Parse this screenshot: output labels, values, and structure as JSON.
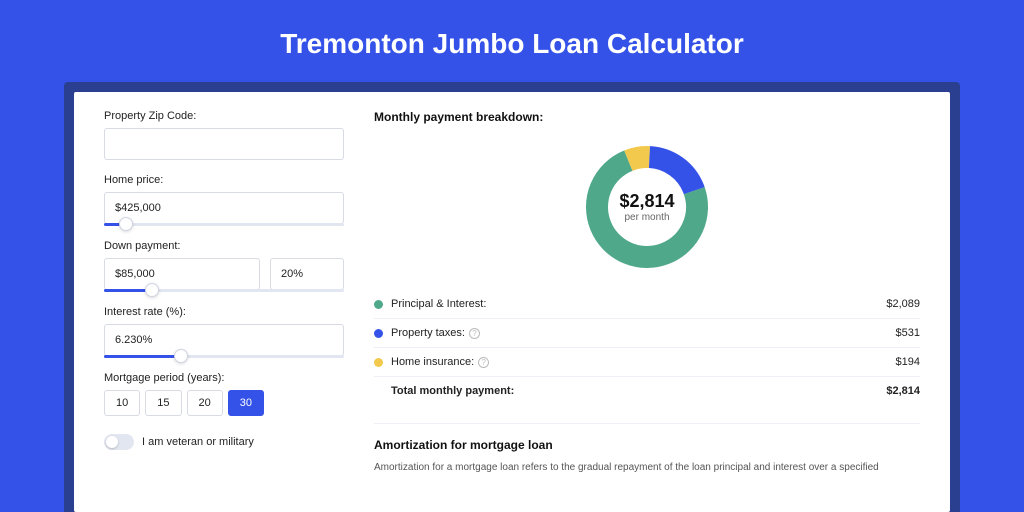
{
  "page": {
    "title": "Tremonton Jumbo Loan Calculator",
    "background_color": "#3452e8",
    "frame_shadow_color": "#2a3f8f",
    "card_background": "#ffffff"
  },
  "form": {
    "zip": {
      "label": "Property Zip Code:",
      "value": ""
    },
    "home_price": {
      "label": "Home price:",
      "value": "$425,000",
      "slider_pct": 9
    },
    "down_payment": {
      "label": "Down payment:",
      "value": "$85,000",
      "pct": "20%",
      "slider_pct": 20
    },
    "interest_rate": {
      "label": "Interest rate (%):",
      "value": "6.230%",
      "slider_pct": 32
    },
    "mortgage_period": {
      "label": "Mortgage period (years):",
      "options": [
        "10",
        "15",
        "20",
        "30"
      ],
      "selected": "30"
    },
    "veteran": {
      "label": "I am veteran or military",
      "checked": false
    }
  },
  "breakdown": {
    "title": "Monthly payment breakdown:",
    "center_amount": "$2,814",
    "center_sub": "per month",
    "donut": {
      "segments": [
        {
          "label": "Principal & Interest:",
          "value": "$2,089",
          "color": "#4ea889",
          "pct": 74.2,
          "has_info": false
        },
        {
          "label": "Property taxes:",
          "value": "$531",
          "color": "#3452e8",
          "pct": 18.9,
          "has_info": true
        },
        {
          "label": "Home insurance:",
          "value": "$194",
          "color": "#f2c94c",
          "pct": 6.9,
          "has_info": true
        }
      ],
      "stroke_width": 22,
      "radius": 50,
      "svg_size": 130
    },
    "total": {
      "label": "Total monthly payment:",
      "value": "$2,814"
    }
  },
  "amortization": {
    "title": "Amortization for mortgage loan",
    "text": "Amortization for a mortgage loan refers to the gradual repayment of the loan principal and interest over a specified"
  }
}
